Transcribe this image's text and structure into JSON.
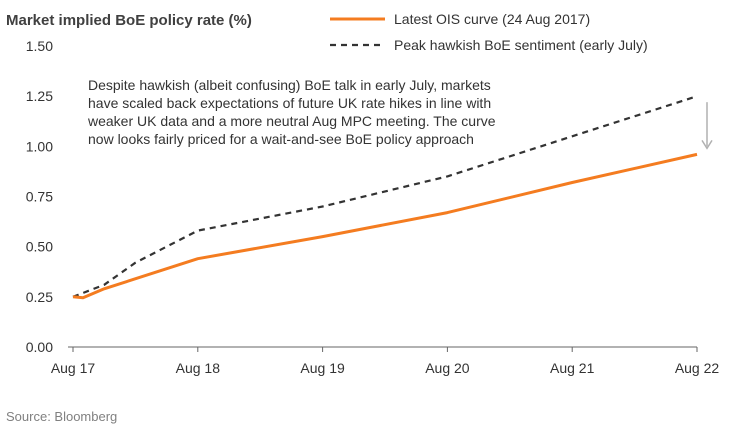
{
  "chart_data": {
    "type": "line",
    "title": "Market implied BoE policy rate (%)",
    "xlabel": "",
    "ylabel": "",
    "x_tick_labels": [
      "Aug 17",
      "Aug 18",
      "Aug 19",
      "Aug 20",
      "Aug 21",
      "Aug 22"
    ],
    "xlim": [
      0,
      5
    ],
    "ylim": [
      0,
      1.5
    ],
    "y_ticks": [
      0,
      0.25,
      0.5,
      0.75,
      1.0,
      1.25,
      1.5
    ],
    "y_tick_labels": [
      "0.00",
      "0.25",
      "0.50",
      "0.75",
      "1.00",
      "1.25",
      "1.50"
    ],
    "grid": false,
    "legend_position": "top-right",
    "series": [
      {
        "name": "Latest OIS curve (24 Aug 2017)",
        "color": "#F47C20",
        "style": "solid",
        "x": [
          0,
          0.08,
          0.25,
          1,
          2,
          3,
          4,
          5
        ],
        "y": [
          0.25,
          0.245,
          0.29,
          0.44,
          0.55,
          0.67,
          0.82,
          0.96
        ]
      },
      {
        "name": "Peak hawkish BoE sentiment (early July)",
        "color": "#333333",
        "style": "dashed",
        "x": [
          0,
          0.25,
          0.5,
          1,
          2,
          3,
          4,
          5
        ],
        "y": [
          0.25,
          0.31,
          0.42,
          0.58,
          0.7,
          0.85,
          1.05,
          1.25
        ]
      }
    ],
    "annotation": {
      "lines": [
        "Despite hawkish (albeit confusing) BoE talk in early July, markets",
        "have scaled back expectations of future UK rate hikes in line with",
        "weaker UK data and a more neutral Aug MPC meeting. The curve",
        "now looks fairly priced for a wait-and-see BoE policy approach"
      ],
      "arrow": {
        "x": 5,
        "from": 1.25,
        "to": 0.96,
        "color": "#B0B0B0"
      }
    },
    "source": "Source: Bloomberg"
  }
}
